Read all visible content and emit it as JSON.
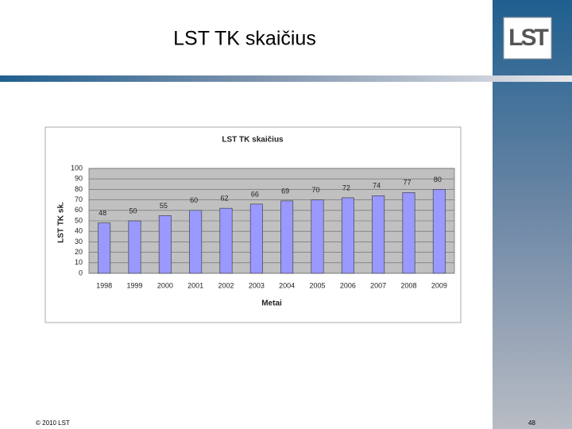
{
  "slide": {
    "title": "LST TK skaičius",
    "logo": "LST",
    "footer": "© 2010 LST",
    "page_number": "48"
  },
  "chart_data": {
    "type": "bar",
    "title": "LST TK skaičius",
    "y_label": "LST TK sk.",
    "x_label": "Metai",
    "categories": [
      "1998",
      "1999",
      "2000",
      "2001",
      "2002",
      "2003",
      "2004",
      "2005",
      "2006",
      "2007",
      "2008",
      "2009"
    ],
    "values": [
      48,
      50,
      55,
      60,
      62,
      66,
      69,
      70,
      72,
      74,
      77,
      80
    ],
    "color": "#9999ff",
    "plot_background": "#c0c0c0",
    "ylim": [
      0,
      100
    ],
    "yticks": [
      0,
      10,
      20,
      30,
      40,
      50,
      60,
      70,
      80,
      90,
      100
    ],
    "grid": true
  }
}
